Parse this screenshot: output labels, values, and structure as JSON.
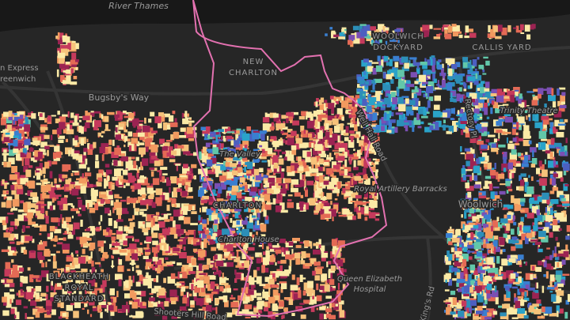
{
  "map": {
    "labels": {
      "river": "River Thames",
      "new_charlton": [
        "NEW",
        "CHARLTON"
      ],
      "woolwich_dockyard": [
        "WOOLWICH",
        "DOCKYARD"
      ],
      "callis_yard": "CALLIS YARD",
      "bugsbys_way": "Bugsby's Way",
      "express": [
        "n Express",
        "reenwich"
      ],
      "the_valley": "The Valley",
      "charlton": "CHARLTON",
      "charlton_house": "Charlton House",
      "barracks": "Royal Artillery Barracks",
      "woolwich": "Woolwich",
      "hospital": [
        "Queen Elizabeth",
        "Hospital"
      ],
      "blackheath": [
        "BLACKHEATH",
        "ROYAL",
        "STANDARD"
      ],
      "rectory": "Rectory Pl",
      "well_hall": "Well Hall Road",
      "trinity": "Trinity Theatre",
      "shooters": "Shooters Hill Road",
      "kings_rd": "King's Rd"
    }
  }
}
